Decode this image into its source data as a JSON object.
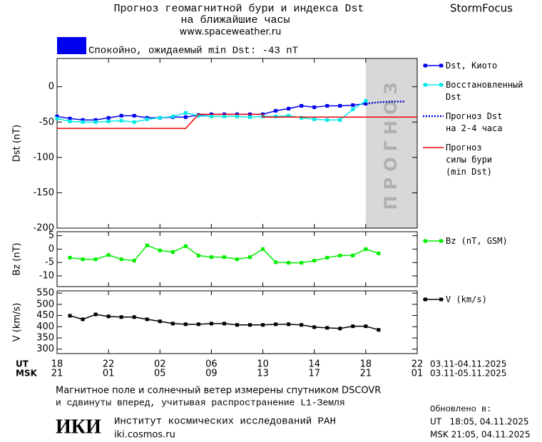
{
  "header": {
    "title": "Прогноз геомагнитной бури и индекса Dst",
    "subtitle": "на ближайшие часы",
    "url": "www.spaceweather.ru",
    "brand": "StormFocus",
    "status": "Спокойно, ожидаемый min Dst: -43 nT",
    "status_color": "#0000ee"
  },
  "chart_data": [
    {
      "type": "line",
      "ylabel": "Dst (nT)",
      "xlim": [
        0,
        28
      ],
      "ylim": [
        -200,
        40
      ],
      "yticks": [
        -200,
        -150,
        -100,
        -50,
        0
      ],
      "forecast_region": [
        24,
        28
      ],
      "forecast_label": "ПРОГНОЗ",
      "series": [
        {
          "name": "Dst, Киото",
          "color": "#0000ee",
          "marker": "square",
          "line_style": "solid",
          "x": [
            0,
            1,
            2,
            3,
            4,
            5,
            6,
            7,
            8,
            9,
            10,
            11,
            12,
            13,
            14,
            15,
            16,
            17,
            18,
            19,
            20,
            21,
            22,
            23,
            24
          ],
          "values": [
            -42,
            -45,
            -47,
            -47,
            -44,
            -41,
            -41,
            -44,
            -44,
            -43,
            -43,
            -40,
            -39,
            -39,
            -39,
            -39,
            -39,
            -34,
            -31,
            -27,
            -29,
            -27,
            -27,
            -26,
            -24
          ]
        },
        {
          "name": "Восстановленный\nDst",
          "color": "#00e8e8",
          "marker": "square",
          "line_style": "solid",
          "x": [
            0,
            1,
            2,
            3,
            4,
            5,
            6,
            7,
            8,
            9,
            10,
            11,
            12,
            13,
            14,
            15,
            16,
            17,
            18,
            19,
            20,
            21,
            22,
            23,
            24
          ],
          "values": [
            -45,
            -49,
            -50,
            -50,
            -49,
            -48,
            -50,
            -46,
            -44,
            -42,
            -37,
            -41,
            -42,
            -42,
            -42,
            -43,
            -42,
            -42,
            -41,
            -44,
            -46,
            -47,
            -47,
            -32,
            -20
          ]
        },
        {
          "name": "Прогноз Dst\nна 2-4 часа",
          "color": "#0000cc",
          "line_style": "dotted",
          "x": [
            24,
            25,
            26,
            27
          ],
          "values": [
            -24,
            -22,
            -21,
            -21
          ]
        },
        {
          "name": "Прогноз\nсилы бури\n(min Dst)",
          "color": "#ee0000",
          "line_style": "solid",
          "x": [
            0,
            10,
            11,
            16,
            16,
            28
          ],
          "values": [
            -59,
            -59,
            -39,
            -39,
            -43,
            -43
          ]
        }
      ]
    },
    {
      "type": "line",
      "ylabel": "Bz (nT)",
      "xlim": [
        0,
        28
      ],
      "ylim": [
        -14,
        6.5
      ],
      "yticks": [
        -10,
        -5,
        0,
        5
      ],
      "series": [
        {
          "name": "Bz (nT, GSM)",
          "color": "#00ee00",
          "marker": "square",
          "line_style": "solid",
          "x": [
            1,
            2,
            3,
            4,
            5,
            6,
            7,
            8,
            9,
            10,
            11,
            12,
            13,
            14,
            15,
            16,
            17,
            18,
            19,
            20,
            21,
            22,
            23,
            24,
            25
          ],
          "values": [
            -3.2,
            -3.8,
            -3.8,
            -2.2,
            -3.8,
            -4.3,
            1.4,
            -0.5,
            -1.1,
            1.1,
            -2.4,
            -3,
            -3,
            -3.8,
            -3,
            0,
            -4.9,
            -5.1,
            -5.1,
            -4.3,
            -3.2,
            -2.4,
            -2.4,
            0,
            -1.6
          ]
        }
      ]
    },
    {
      "type": "line",
      "ylabel": "V (km/s)",
      "xlim": [
        0,
        28
      ],
      "ylim": [
        280,
        560
      ],
      "yticks": [
        300,
        350,
        400,
        450,
        500,
        550
      ],
      "xticks": [
        {
          "value": 0,
          "label": "18"
        },
        {
          "value": 4,
          "label": "22"
        },
        {
          "value": 8,
          "label": "02"
        },
        {
          "value": 12,
          "label": "06"
        },
        {
          "value": 16,
          "label": "10"
        },
        {
          "value": 20,
          "label": "14"
        },
        {
          "value": 24,
          "label": "18"
        },
        {
          "value": 28,
          "label": "22"
        }
      ],
      "xticks_msk": [
        {
          "value": 0,
          "label": "21"
        },
        {
          "value": 4,
          "label": "01"
        },
        {
          "value": 8,
          "label": "05"
        },
        {
          "value": 12,
          "label": "09"
        },
        {
          "value": 16,
          "label": "13"
        },
        {
          "value": 20,
          "label": "17"
        },
        {
          "value": 24,
          "label": "21"
        },
        {
          "value": 28,
          "label": "01"
        }
      ],
      "ut_label": "UT",
      "msk_label": "MSK",
      "ut_range": "03.11-04.11.2025",
      "msk_range": "03.11-05.11.2025",
      "series": [
        {
          "name": "V (km/s)",
          "color": "#000000",
          "marker": "square",
          "line_style": "solid",
          "x": [
            1,
            2,
            3,
            4,
            5,
            6,
            7,
            8,
            9,
            10,
            11,
            12,
            13,
            14,
            15,
            16,
            17,
            18,
            19,
            20,
            21,
            22,
            23,
            24,
            25
          ],
          "values": [
            449,
            433,
            455,
            446,
            443,
            443,
            433,
            424,
            414,
            411,
            411,
            414,
            414,
            408,
            408,
            408,
            411,
            411,
            408,
            398,
            395,
            392,
            402,
            402,
            386
          ]
        }
      ]
    }
  ],
  "footer": {
    "note_1": "Магнитное поле и солнечный ветер измерены спутником DSCOVR",
    "note_2": "и сдвинуты вперед, учитывая распространение L1-Земля",
    "updated": "Обновлено в:",
    "updated_ut": "UT   18:05, 04.11.2025",
    "updated_msk": "MSK 21:05, 04.11.2025",
    "logo": "ИКИ",
    "institute": "Институт космических исследований РАН",
    "site": "iki.cosmos.ru"
  }
}
